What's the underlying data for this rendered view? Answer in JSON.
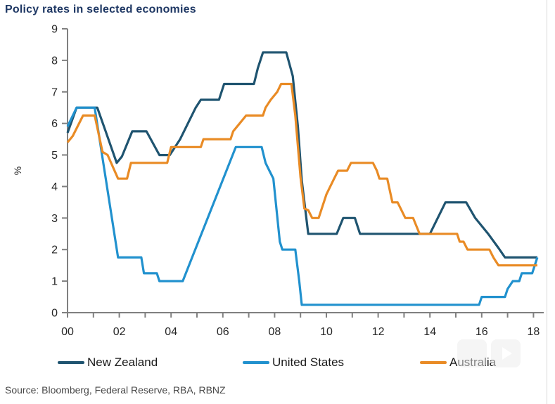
{
  "page": {
    "title": "Policy rates in selected economies",
    "source": "Source: Bloomberg, Federal Reserve, RBA, RBNZ"
  },
  "chart_data": {
    "type": "line",
    "title": "Policy rates in selected economies",
    "xlabel": "",
    "ylabel": "%",
    "ylim": [
      0,
      9
    ],
    "y_ticks": [
      0,
      1,
      2,
      3,
      4,
      5,
      6,
      7,
      8,
      9
    ],
    "xlim": [
      2000,
      2018.4
    ],
    "x_tick_years": [
      2000,
      2001,
      2002,
      2003,
      2004,
      2005,
      2006,
      2007,
      2008,
      2009,
      2010,
      2011,
      2012,
      2013,
      2014,
      2015,
      2016,
      2017,
      2018
    ],
    "x_tick_labels": [
      "00",
      "02",
      "04",
      "06",
      "08",
      "10",
      "12",
      "14",
      "16",
      "18"
    ],
    "grid": false,
    "legend_position": "bottom",
    "axis_color": "#808080",
    "tick_label_color": "#262626",
    "series": [
      {
        "name": "New Zealand",
        "color": "#1F5470",
        "points": [
          [
            2000.0,
            5.7
          ],
          [
            2000.35,
            6.5
          ],
          [
            2001.15,
            6.5
          ],
          [
            2001.45,
            5.8
          ],
          [
            2001.9,
            4.75
          ],
          [
            2002.1,
            4.95
          ],
          [
            2002.5,
            5.75
          ],
          [
            2003.05,
            5.75
          ],
          [
            2003.55,
            5.0
          ],
          [
            2003.95,
            5.0
          ],
          [
            2004.35,
            5.5
          ],
          [
            2004.95,
            6.5
          ],
          [
            2005.15,
            6.75
          ],
          [
            2005.85,
            6.75
          ],
          [
            2006.05,
            7.25
          ],
          [
            2007.2,
            7.25
          ],
          [
            2007.35,
            7.75
          ],
          [
            2007.55,
            8.25
          ],
          [
            2008.45,
            8.25
          ],
          [
            2008.7,
            7.5
          ],
          [
            2008.9,
            5.9
          ],
          [
            2009.05,
            4.2
          ],
          [
            2009.3,
            2.5
          ],
          [
            2010.4,
            2.5
          ],
          [
            2010.65,
            3.0
          ],
          [
            2011.1,
            3.0
          ],
          [
            2011.3,
            2.5
          ],
          [
            2014.0,
            2.5
          ],
          [
            2014.6,
            3.5
          ],
          [
            2015.4,
            3.5
          ],
          [
            2015.75,
            3.0
          ],
          [
            2016.05,
            2.7
          ],
          [
            2016.25,
            2.5
          ],
          [
            2016.65,
            2.05
          ],
          [
            2016.9,
            1.75
          ],
          [
            2018.15,
            1.75
          ]
        ]
      },
      {
        "name": "United States",
        "color": "#2191CE",
        "points": [
          [
            2000.0,
            5.9
          ],
          [
            2000.35,
            6.5
          ],
          [
            2001.05,
            6.5
          ],
          [
            2001.95,
            1.75
          ],
          [
            2002.85,
            1.75
          ],
          [
            2002.95,
            1.25
          ],
          [
            2003.45,
            1.25
          ],
          [
            2003.55,
            1.0
          ],
          [
            2004.45,
            1.0
          ],
          [
            2006.5,
            5.25
          ],
          [
            2007.5,
            5.25
          ],
          [
            2007.65,
            4.75
          ],
          [
            2007.8,
            4.5
          ],
          [
            2007.95,
            4.25
          ],
          [
            2008.2,
            2.25
          ],
          [
            2008.3,
            2.0
          ],
          [
            2008.8,
            2.0
          ],
          [
            2008.95,
            1.0
          ],
          [
            2009.05,
            0.25
          ],
          [
            2015.9,
            0.25
          ],
          [
            2016.0,
            0.5
          ],
          [
            2016.9,
            0.5
          ],
          [
            2017.0,
            0.75
          ],
          [
            2017.2,
            1.0
          ],
          [
            2017.45,
            1.0
          ],
          [
            2017.55,
            1.25
          ],
          [
            2017.95,
            1.25
          ],
          [
            2018.05,
            1.5
          ],
          [
            2018.15,
            1.75
          ]
        ]
      },
      {
        "name": "Australia",
        "color": "#E98B25",
        "points": [
          [
            2000.0,
            5.4
          ],
          [
            2000.2,
            5.6
          ],
          [
            2000.6,
            6.25
          ],
          [
            2001.05,
            6.25
          ],
          [
            2001.35,
            5.1
          ],
          [
            2001.55,
            5.0
          ],
          [
            2001.95,
            4.25
          ],
          [
            2002.3,
            4.25
          ],
          [
            2002.45,
            4.75
          ],
          [
            2003.85,
            4.75
          ],
          [
            2004.0,
            5.25
          ],
          [
            2005.15,
            5.25
          ],
          [
            2005.25,
            5.5
          ],
          [
            2006.3,
            5.5
          ],
          [
            2006.4,
            5.75
          ],
          [
            2006.65,
            6.0
          ],
          [
            2006.9,
            6.25
          ],
          [
            2007.55,
            6.25
          ],
          [
            2007.65,
            6.5
          ],
          [
            2007.85,
            6.75
          ],
          [
            2008.1,
            7.0
          ],
          [
            2008.25,
            7.25
          ],
          [
            2008.65,
            7.25
          ],
          [
            2008.8,
            6.25
          ],
          [
            2009.0,
            4.3
          ],
          [
            2009.15,
            3.3
          ],
          [
            2009.3,
            3.25
          ],
          [
            2009.45,
            3.0
          ],
          [
            2009.7,
            3.0
          ],
          [
            2010.0,
            3.75
          ],
          [
            2010.3,
            4.25
          ],
          [
            2010.45,
            4.5
          ],
          [
            2010.8,
            4.5
          ],
          [
            2010.95,
            4.75
          ],
          [
            2011.8,
            4.75
          ],
          [
            2011.95,
            4.5
          ],
          [
            2012.05,
            4.25
          ],
          [
            2012.35,
            4.25
          ],
          [
            2012.55,
            3.5
          ],
          [
            2012.75,
            3.5
          ],
          [
            2012.9,
            3.25
          ],
          [
            2013.05,
            3.0
          ],
          [
            2013.35,
            3.0
          ],
          [
            2013.6,
            2.5
          ],
          [
            2015.05,
            2.5
          ],
          [
            2015.15,
            2.25
          ],
          [
            2015.3,
            2.25
          ],
          [
            2015.45,
            2.0
          ],
          [
            2016.3,
            2.0
          ],
          [
            2016.45,
            1.75
          ],
          [
            2016.65,
            1.5
          ],
          [
            2018.15,
            1.5
          ]
        ]
      }
    ]
  }
}
